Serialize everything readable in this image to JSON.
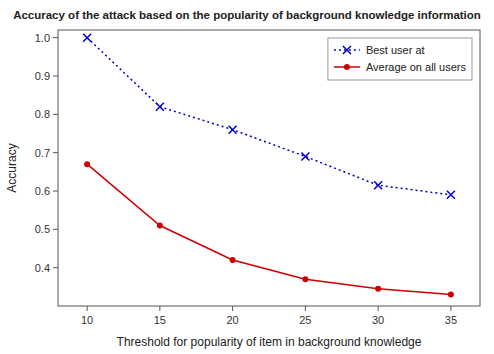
{
  "chart_data": {
    "type": "line",
    "title": "Accuracy of the attack based on the popularity of background knowledge information",
    "xlabel": "Threshold for popularity of item in background knowledge",
    "ylabel": "Accuracy",
    "x": [
      10,
      15,
      20,
      25,
      30,
      35
    ],
    "series": [
      {
        "name": "Best user at",
        "color": "#0000cc",
        "values": [
          1.0,
          0.82,
          0.76,
          0.69,
          0.615,
          0.59
        ],
        "marker": "x",
        "line_style": "dotted"
      },
      {
        "name": "Average on all users",
        "color": "#cc0000",
        "values": [
          0.67,
          0.51,
          0.42,
          0.37,
          0.345,
          0.33
        ],
        "marker": "circle",
        "line_style": "solid"
      }
    ],
    "xlim": [
      8,
      37
    ],
    "ylim": [
      0.3,
      1.02
    ],
    "xticks": [
      10,
      15,
      20,
      25,
      30,
      35
    ],
    "yticks": [
      0.4,
      0.5,
      0.6,
      0.7,
      0.8,
      0.9,
      {
        "value": 1.0,
        "label": "1.0"
      }
    ],
    "grid": false,
    "legend": "upper-right"
  }
}
